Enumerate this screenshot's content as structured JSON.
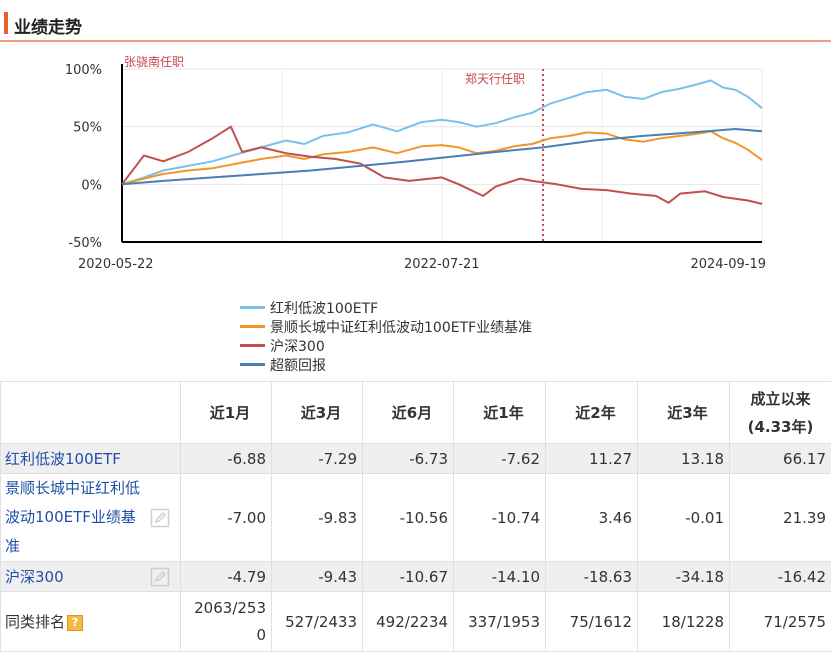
{
  "header": {
    "title": "业绩走势"
  },
  "chart_data": {
    "type": "line",
    "x_labels": [
      "2020-05-22",
      "2022-07-21",
      "2024-09-19"
    ],
    "x_range": [
      "2020-05-22",
      "2024-09-19"
    ],
    "ylim": [
      -50,
      100
    ],
    "yticks": [
      "100%",
      "50%",
      "0%",
      "-50%"
    ],
    "y_unit": "%",
    "grid": true,
    "legend_position": "bottom",
    "annotations": [
      {
        "label": "张骁南任职",
        "date": "2020-05-22"
      },
      {
        "label": "郑天行任职",
        "date": "2023-03-28"
      }
    ],
    "series": [
      {
        "name": "红利低波100ETF",
        "color": "#7cc0ea",
        "points": [
          [
            "2020-05-22",
            0
          ],
          [
            "2020-07-15",
            6
          ],
          [
            "2020-09-01",
            12
          ],
          [
            "2020-11-01",
            16
          ],
          [
            "2021-01-01",
            20
          ],
          [
            "2021-03-01",
            26
          ],
          [
            "2021-05-01",
            32
          ],
          [
            "2021-07-01",
            38
          ],
          [
            "2021-08-15",
            35
          ],
          [
            "2021-10-01",
            42
          ],
          [
            "2021-12-01",
            45
          ],
          [
            "2022-02-01",
            52
          ],
          [
            "2022-04-01",
            46
          ],
          [
            "2022-06-01",
            54
          ],
          [
            "2022-07-21",
            56
          ],
          [
            "2022-09-01",
            54
          ],
          [
            "2022-10-15",
            50
          ],
          [
            "2022-12-01",
            53
          ],
          [
            "2023-01-15",
            58
          ],
          [
            "2023-03-01",
            62
          ],
          [
            "2023-04-15",
            70
          ],
          [
            "2023-06-01",
            75
          ],
          [
            "2023-07-15",
            80
          ],
          [
            "2023-09-01",
            82
          ],
          [
            "2023-10-15",
            76
          ],
          [
            "2023-12-01",
            74
          ],
          [
            "2024-01-15",
            80
          ],
          [
            "2024-03-01",
            83
          ],
          [
            "2024-04-15",
            87
          ],
          [
            "2024-05-15",
            90
          ],
          [
            "2024-06-15",
            84
          ],
          [
            "2024-07-15",
            82
          ],
          [
            "2024-08-15",
            76
          ],
          [
            "2024-09-19",
            66
          ]
        ]
      },
      {
        "name": "景顺长城中证红利低波动100ETF业绩基准",
        "color": "#f0962c",
        "points": [
          [
            "2020-05-22",
            0
          ],
          [
            "2020-07-15",
            5
          ],
          [
            "2020-09-01",
            9
          ],
          [
            "2020-11-01",
            12
          ],
          [
            "2021-01-01",
            14
          ],
          [
            "2021-03-01",
            18
          ],
          [
            "2021-05-01",
            22
          ],
          [
            "2021-07-01",
            25
          ],
          [
            "2021-08-15",
            22
          ],
          [
            "2021-10-01",
            26
          ],
          [
            "2021-12-01",
            28
          ],
          [
            "2022-02-01",
            32
          ],
          [
            "2022-04-01",
            27
          ],
          [
            "2022-06-01",
            33
          ],
          [
            "2022-07-21",
            34
          ],
          [
            "2022-09-01",
            32
          ],
          [
            "2022-10-15",
            27
          ],
          [
            "2022-12-01",
            29
          ],
          [
            "2023-01-15",
            33
          ],
          [
            "2023-03-01",
            35
          ],
          [
            "2023-04-15",
            40
          ],
          [
            "2023-06-01",
            42
          ],
          [
            "2023-07-15",
            45
          ],
          [
            "2023-09-01",
            44
          ],
          [
            "2023-10-15",
            39
          ],
          [
            "2023-12-01",
            37
          ],
          [
            "2024-01-15",
            40
          ],
          [
            "2024-03-01",
            42
          ],
          [
            "2024-04-15",
            44
          ],
          [
            "2024-05-15",
            46
          ],
          [
            "2024-06-15",
            40
          ],
          [
            "2024-07-15",
            36
          ],
          [
            "2024-08-15",
            30
          ],
          [
            "2024-09-19",
            21
          ]
        ]
      },
      {
        "name": "沪深300",
        "color": "#c0504d",
        "points": [
          [
            "2020-05-22",
            0
          ],
          [
            "2020-07-15",
            25
          ],
          [
            "2020-09-01",
            20
          ],
          [
            "2020-11-01",
            28
          ],
          [
            "2021-01-01",
            40
          ],
          [
            "2021-02-15",
            50
          ],
          [
            "2021-03-15",
            28
          ],
          [
            "2021-05-01",
            32
          ],
          [
            "2021-07-01",
            27
          ],
          [
            "2021-09-01",
            24
          ],
          [
            "2021-11-01",
            22
          ],
          [
            "2022-01-01",
            18
          ],
          [
            "2022-03-01",
            6
          ],
          [
            "2022-05-01",
            3
          ],
          [
            "2022-07-21",
            6
          ],
          [
            "2022-09-01",
            0
          ],
          [
            "2022-10-31",
            -10
          ],
          [
            "2022-12-01",
            -2
          ],
          [
            "2023-01-31",
            5
          ],
          [
            "2023-03-01",
            3
          ],
          [
            "2023-05-01",
            0
          ],
          [
            "2023-07-01",
            -4
          ],
          [
            "2023-09-01",
            -5
          ],
          [
            "2023-11-01",
            -8
          ],
          [
            "2024-01-01",
            -10
          ],
          [
            "2024-02-01",
            -16
          ],
          [
            "2024-03-01",
            -8
          ],
          [
            "2024-05-01",
            -6
          ],
          [
            "2024-06-15",
            -11
          ],
          [
            "2024-08-15",
            -14
          ],
          [
            "2024-09-19",
            -17
          ]
        ]
      },
      {
        "name": "超额回报",
        "color": "#4a7fb5",
        "points": [
          [
            "2020-05-22",
            0
          ],
          [
            "2020-09-01",
            3
          ],
          [
            "2021-01-01",
            6
          ],
          [
            "2021-05-01",
            9
          ],
          [
            "2021-09-01",
            12
          ],
          [
            "2022-01-01",
            16
          ],
          [
            "2022-05-01",
            20
          ],
          [
            "2022-07-21",
            23
          ],
          [
            "2022-12-01",
            28
          ],
          [
            "2023-03-28",
            32
          ],
          [
            "2023-08-01",
            38
          ],
          [
            "2023-12-01",
            42
          ],
          [
            "2024-04-01",
            45
          ],
          [
            "2024-07-15",
            48
          ],
          [
            "2024-09-19",
            46
          ]
        ]
      }
    ]
  },
  "table": {
    "headers": [
      "",
      "近1月",
      "近3月",
      "近6月",
      "近1年",
      "近2年",
      "近3年",
      "成立以来\n(4.33年)"
    ],
    "rows": [
      {
        "name": "红利低波100ETF",
        "values": [
          "-6.88",
          "-7.29",
          "-6.73",
          "-7.62",
          "11.27",
          "13.18",
          "66.17"
        ]
      },
      {
        "name": "景顺长城中证红利低波动100ETF业绩基准",
        "values": [
          "-7.00",
          "-9.83",
          "-10.56",
          "-10.74",
          "3.46",
          "-0.01",
          "21.39"
        ]
      },
      {
        "name": "沪深300",
        "values": [
          "-4.79",
          "-9.43",
          "-10.67",
          "-14.10",
          "-18.63",
          "-34.18",
          "-16.42"
        ]
      },
      {
        "name": "同类排名",
        "help": "?",
        "values": [
          "2063/2530",
          "527/2433",
          "492/2234",
          "337/1953",
          "75/1612",
          "18/1228",
          "71/2575"
        ]
      }
    ]
  }
}
